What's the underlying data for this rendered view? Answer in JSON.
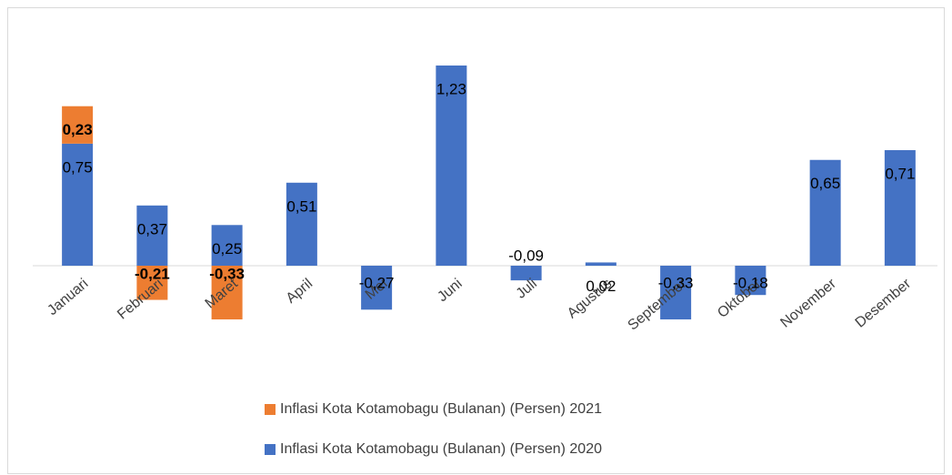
{
  "chart_data": {
    "type": "stacked_bar",
    "categories": [
      "Januari",
      "Februari",
      "Maret",
      "April",
      "Mei",
      "Juni",
      "Juli",
      "Agustus",
      "September",
      "Oktober",
      "November",
      "Desember"
    ],
    "series": [
      {
        "name": "Inflasi Kota Kotamobagu (Bulanan) (Persen) 2021",
        "color": "#ed7d31",
        "values": [
          0.23,
          -0.21,
          -0.33,
          null,
          null,
          null,
          null,
          null,
          null,
          null,
          null,
          null
        ],
        "value_labels": [
          "0,23",
          "-0,21",
          "-0,33",
          null,
          null,
          null,
          null,
          null,
          null,
          null,
          null,
          null
        ]
      },
      {
        "name": "Inflasi Kota Kotamobagu (Bulanan) (Persen) 2020",
        "color": "#4472c4",
        "values": [
          0.75,
          0.37,
          0.25,
          0.51,
          -0.27,
          1.23,
          -0.09,
          0.02,
          -0.33,
          -0.18,
          0.65,
          0.71
        ],
        "value_labels": [
          "0,75",
          "0,37",
          "0,25",
          "0,51",
          "-0,27",
          "1,23",
          "-0,09",
          "0,02",
          "-0,33",
          "-0,18",
          "0,65",
          "0,71"
        ]
      }
    ]
  }
}
